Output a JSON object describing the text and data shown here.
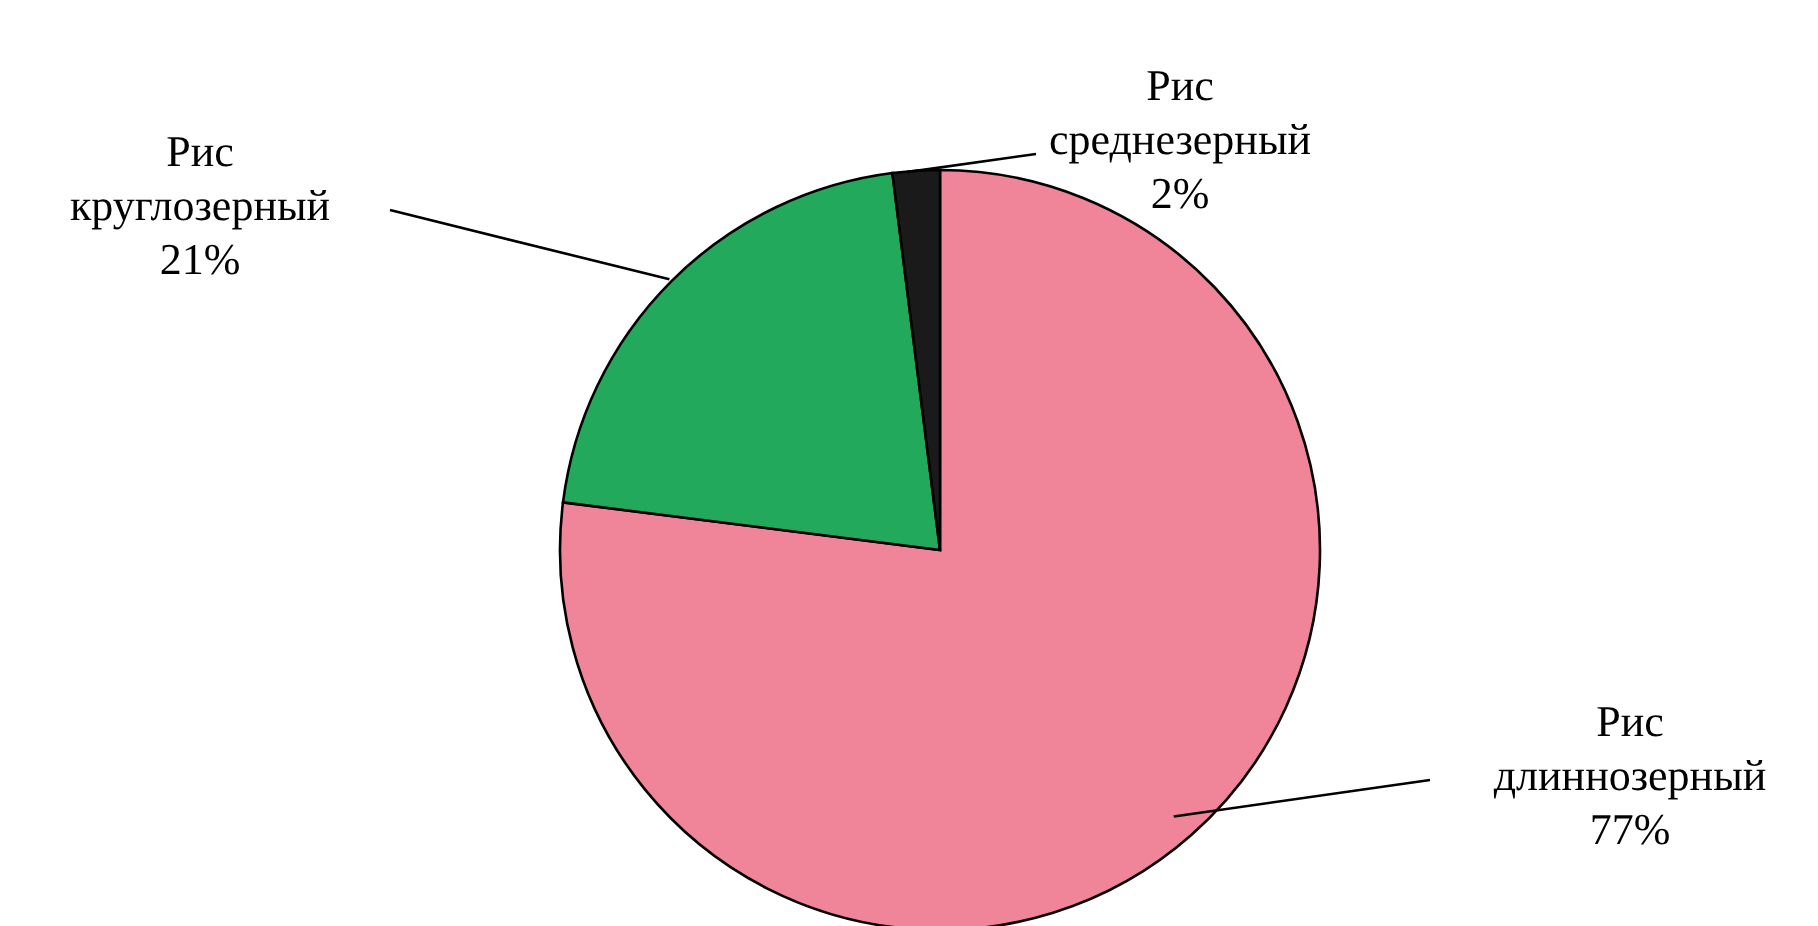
{
  "chart_data": {
    "type": "pie",
    "categories": [
      "Рис длиннозерный",
      "Рис круглозерный",
      "Рис среднезерный"
    ],
    "values": [
      77,
      21,
      2
    ],
    "colors": [
      "#f08498",
      "#22a95b",
      "#1a1a1a"
    ],
    "value_labels": [
      "77%",
      "21%",
      "2%"
    ]
  }
}
